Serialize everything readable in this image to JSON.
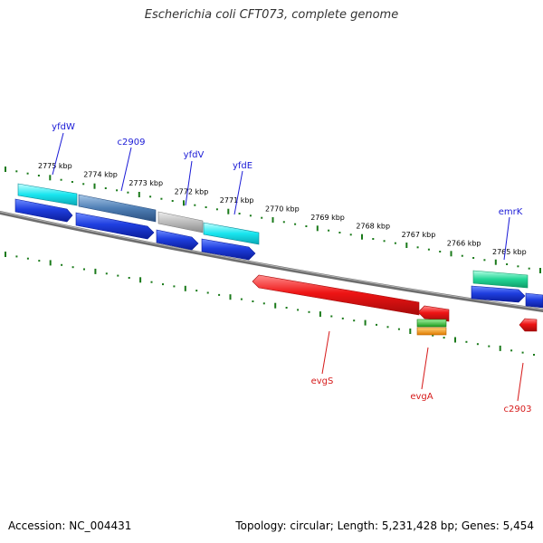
{
  "title": "Escherichia coli CFT073, complete genome",
  "footer": {
    "accession": "Accession: NC_004431",
    "topology": "Topology: circular; Length: 5,231,428 bp; Genes: 5,454"
  },
  "colors": {
    "backbone": "#7a7a7a",
    "ticks": "#1a7a1a",
    "forward_label": "#1a1ad6",
    "reverse_label": "#d61a1a"
  },
  "kbp_labels": [
    "2775 kbp",
    "2774 kbp",
    "2773 kbp",
    "2772 kbp",
    "2771 kbp",
    "2770 kbp",
    "2769 kbp",
    "2768 kbp",
    "2767 kbp",
    "2766 kbp",
    "2765 kbp"
  ],
  "forward_genes": [
    {
      "name": "yfdW",
      "color": "#1f3fd9"
    },
    {
      "name": "c2909",
      "color": "#1f3fd9"
    },
    {
      "name": "yfdV",
      "color": "#1f3fd9"
    },
    {
      "name": "yfdE",
      "color": "#1f3fd9"
    },
    {
      "name": "emrK",
      "color": "#1f3fd9"
    }
  ],
  "reverse_genes": [
    {
      "name": "evgS",
      "color": "#e01010"
    },
    {
      "name": "evgA",
      "color": "#e01010"
    },
    {
      "name": "c2903",
      "color": "#e01010"
    }
  ]
}
